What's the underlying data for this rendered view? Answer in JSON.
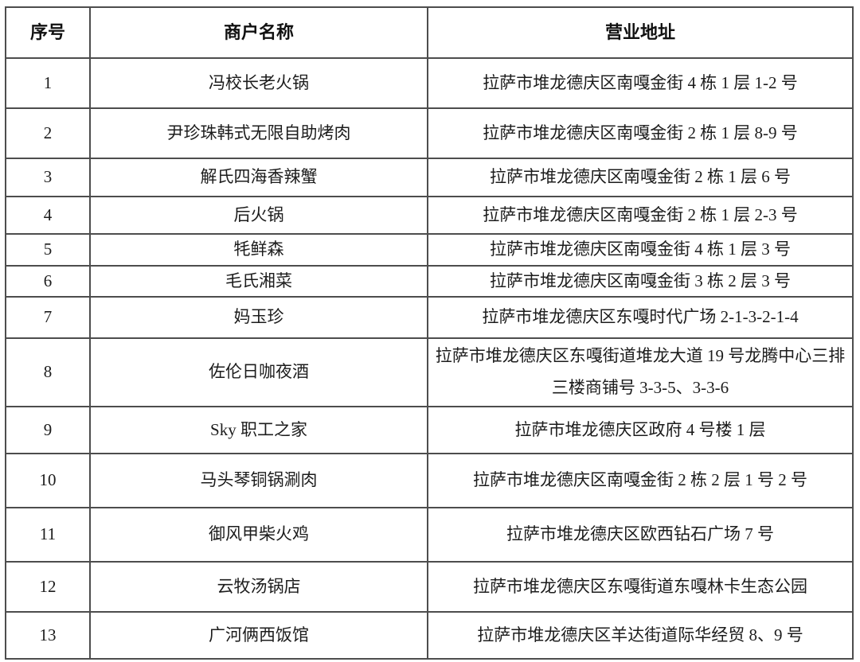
{
  "table": {
    "columns": [
      {
        "key": "no",
        "label": "序号"
      },
      {
        "key": "name",
        "label": "商户名称"
      },
      {
        "key": "address",
        "label": "营业地址"
      }
    ],
    "rows": [
      {
        "no": "1",
        "name": "冯校长老火锅",
        "address": "拉萨市堆龙德庆区南嘎金街 4 栋 1 层 1-2 号"
      },
      {
        "no": "2",
        "name": "尹珍珠韩式无限自助烤肉",
        "address": "拉萨市堆龙德庆区南嘎金街 2 栋 1 层 8-9 号"
      },
      {
        "no": "3",
        "name": "解氏四海香辣蟹",
        "address": "拉萨市堆龙德庆区南嘎金街 2 栋 1 层 6 号"
      },
      {
        "no": "4",
        "name": "后火锅",
        "address": "拉萨市堆龙德庆区南嘎金街 2 栋 1 层 2-3 号"
      },
      {
        "no": "5",
        "name": "牦鲜森",
        "address": "拉萨市堆龙德庆区南嘎金街 4 栋 1 层 3 号"
      },
      {
        "no": "6",
        "name": "毛氏湘菜",
        "address": "拉萨市堆龙德庆区南嘎金街 3 栋 2 层 3 号"
      },
      {
        "no": "7",
        "name": "妈玉珍",
        "address": "拉萨市堆龙德庆区东嘎时代广场 2-1-3-2-1-4"
      },
      {
        "no": "8",
        "name": "佐伦日咖夜酒",
        "address": "拉萨市堆龙德庆区东嘎街道堆龙大道 19 号龙腾中心三排三楼商铺号 3-3-5、3-3-6"
      },
      {
        "no": "9",
        "name": "Sky 职工之家",
        "address": "拉萨市堆龙德庆区政府 4 号楼 1 层"
      },
      {
        "no": "10",
        "name": "马头琴铜锅涮肉",
        "address": "拉萨市堆龙德庆区南嘎金街 2 栋 2 层 1 号 2 号"
      },
      {
        "no": "11",
        "name": "御风甲柴火鸡",
        "address": "拉萨市堆龙德庆区欧西钻石广场 7 号"
      },
      {
        "no": "12",
        "name": "云牧汤锅店",
        "address": "拉萨市堆龙德庆区东嘎街道东嘎林卡生态公园"
      },
      {
        "no": "13",
        "name": "广河俩西饭馆",
        "address": "拉萨市堆龙德庆区羊达街道际华经贸 8、9 号"
      }
    ]
  }
}
